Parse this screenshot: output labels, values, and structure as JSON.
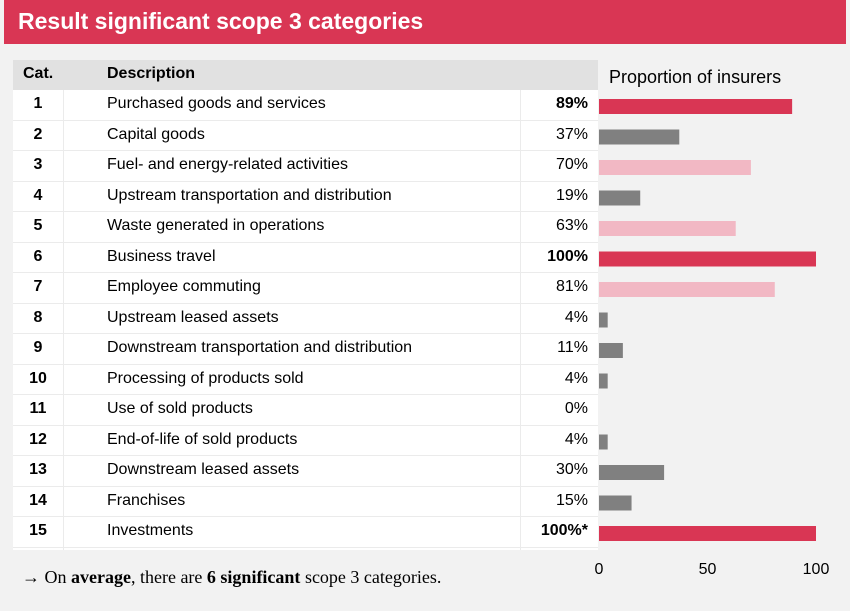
{
  "title": "Result significant scope 3 categories",
  "table": {
    "headers": {
      "cat": "Cat.",
      "description": "Description"
    },
    "rows": [
      {
        "cat": "1",
        "description": "Purchased goods and services",
        "pct": "89%",
        "bold": true
      },
      {
        "cat": "2",
        "description": "Capital goods",
        "pct": "37%",
        "bold": false
      },
      {
        "cat": "3",
        "description": "Fuel- and energy-related activities",
        "pct": "70%",
        "bold": false
      },
      {
        "cat": "4",
        "description": "Upstream transportation and distribution",
        "pct": "19%",
        "bold": false
      },
      {
        "cat": "5",
        "description": "Waste generated in operations",
        "pct": "63%",
        "bold": false
      },
      {
        "cat": "6",
        "description": "Business travel",
        "pct": "100%",
        "bold": true
      },
      {
        "cat": "7",
        "description": "Employee commuting",
        "pct": "81%",
        "bold": false
      },
      {
        "cat": "8",
        "description": "Upstream leased assets",
        "pct": "4%",
        "bold": false
      },
      {
        "cat": "9",
        "description": "Downstream transportation and distribution",
        "pct": "11%",
        "bold": false
      },
      {
        "cat": "10",
        "description": "Processing of products sold",
        "pct": "4%",
        "bold": false
      },
      {
        "cat": "11",
        "description": "Use of sold products",
        "pct": "0%",
        "bold": false
      },
      {
        "cat": "12",
        "description": "End-of-life of sold products",
        "pct": "4%",
        "bold": false
      },
      {
        "cat": "13",
        "description": "Downstream leased assets",
        "pct": "30%",
        "bold": false
      },
      {
        "cat": "14",
        "description": "Franchises",
        "pct": "15%",
        "bold": false
      },
      {
        "cat": "15",
        "description": "Investments",
        "pct": "100%*",
        "bold": true
      }
    ]
  },
  "chart_data": {
    "type": "bar",
    "orientation": "horizontal",
    "title": "Proportion of insurers",
    "categories": [
      "1",
      "2",
      "3",
      "4",
      "5",
      "6",
      "7",
      "8",
      "9",
      "10",
      "11",
      "12",
      "13",
      "14",
      "15"
    ],
    "values": [
      89,
      37,
      70,
      19,
      63,
      100,
      81,
      4,
      11,
      4,
      0,
      4,
      30,
      15,
      100
    ],
    "bar_colors": [
      "#d93654",
      "#808080",
      "#f2b8c4",
      "#808080",
      "#f2b8c4",
      "#d93654",
      "#f2b8c4",
      "#808080",
      "#808080",
      "#808080",
      "#808080",
      "#808080",
      "#808080",
      "#808080",
      "#d93654"
    ],
    "xlim": [
      0,
      100
    ],
    "xticks": [
      "0",
      "50",
      "100"
    ],
    "grid": false
  },
  "footer": {
    "arrow": "→ On ",
    "bold1": "average",
    "mid": ", there are ",
    "bold2": "6 significant",
    "end": " scope 3 categories."
  },
  "colors": {
    "accent": "#d93654",
    "light_accent": "#f2b8c4",
    "gray": "#808080"
  }
}
